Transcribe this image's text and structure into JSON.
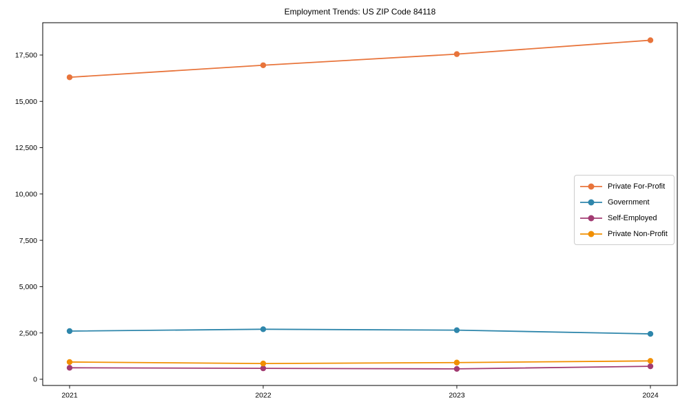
{
  "title": "Employment Trends: US ZIP Code 84118",
  "chart_data": {
    "type": "line",
    "title": "Employment Trends: US ZIP Code 84118",
    "xlabel": "",
    "ylabel": "",
    "x": [
      2021,
      2022,
      2023,
      2024
    ],
    "xtick_labels": [
      "2021",
      "2022",
      "2023",
      "2024"
    ],
    "yticks": [
      0,
      2500,
      5000,
      7500,
      10000,
      12500,
      15000,
      17500
    ],
    "ytick_labels": [
      "0",
      "2,500",
      "5,000",
      "7,500",
      "10,000",
      "12,500",
      "15,000",
      "17,500"
    ],
    "ylim": [
      -335,
      19245
    ],
    "grid": false,
    "marker": "circle",
    "legend_position": "center right",
    "series": [
      {
        "name": "Private For-Profit",
        "color": "#E8743B",
        "values": [
          16300,
          16950,
          17550,
          18300
        ]
      },
      {
        "name": "Government",
        "color": "#2E86AB",
        "values": [
          2600,
          2700,
          2650,
          2450
        ]
      },
      {
        "name": "Self-Employed",
        "color": "#A23B72",
        "values": [
          620,
          590,
          560,
          700
        ]
      },
      {
        "name": "Private Non-Profit",
        "color": "#F18F01",
        "values": [
          930,
          850,
          900,
          990
        ]
      }
    ]
  }
}
